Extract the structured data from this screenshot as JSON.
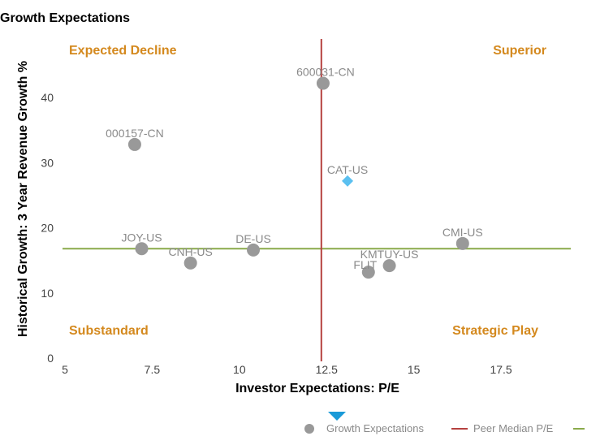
{
  "chart_data": {
    "type": "scatter",
    "title": "Growth Expectations",
    "xlabel": "Investor Expectations: P/E",
    "ylabel": "Historical Growth: 3 Year Revenue Growth %",
    "xlim": [
      5,
      19.5
    ],
    "ylim": [
      0,
      49
    ],
    "xticks": [
      5,
      7.5,
      10,
      12.5,
      15,
      17.5
    ],
    "yticks": [
      0,
      10,
      20,
      30,
      40
    ],
    "points": [
      {
        "label": "600031-CN",
        "x": 12.4,
        "y": 42.2,
        "marker": "circle"
      },
      {
        "label": "000157-CN",
        "x": 7.0,
        "y": 32.8,
        "marker": "circle"
      },
      {
        "label": "CAT-US",
        "x": 13.1,
        "y": 27.2,
        "marker": "diamond"
      },
      {
        "label": "JOY-US",
        "x": 7.2,
        "y": 16.8,
        "marker": "circle"
      },
      {
        "label": "CNH-US",
        "x": 8.6,
        "y": 14.6,
        "marker": "circle"
      },
      {
        "label": "DE-US",
        "x": 10.4,
        "y": 16.6,
        "marker": "circle"
      },
      {
        "label": "CMI-US",
        "x": 16.4,
        "y": 17.6,
        "marker": "circle"
      },
      {
        "label": "KMTUY-US",
        "x": 14.3,
        "y": 14.2,
        "marker": "circle"
      },
      {
        "label": "FLIT",
        "x": 13.7,
        "y": 13.2,
        "marker": "circle"
      }
    ],
    "reference_lines": {
      "peer_median_pe": 12.35,
      "peer_median_growth": 16.8
    },
    "quadrants": {
      "top_left": "Expected Decline",
      "top_right": "Superior",
      "bottom_left": "Substandard",
      "bottom_right": "Strategic Play"
    },
    "legend": [
      {
        "label": "Growth Expectations",
        "symbol": "circle"
      },
      {
        "label": "Peer Median P/E",
        "symbol": "line"
      },
      {
        "label": "",
        "symbol": "line"
      }
    ]
  },
  "colors": {
    "point": "#999999",
    "highlight": "#5bc0f0",
    "vline": "#b5413f",
    "hline": "#8aaa4a",
    "quadrant": "#d4891e",
    "arrow": "#1a9ad8"
  }
}
